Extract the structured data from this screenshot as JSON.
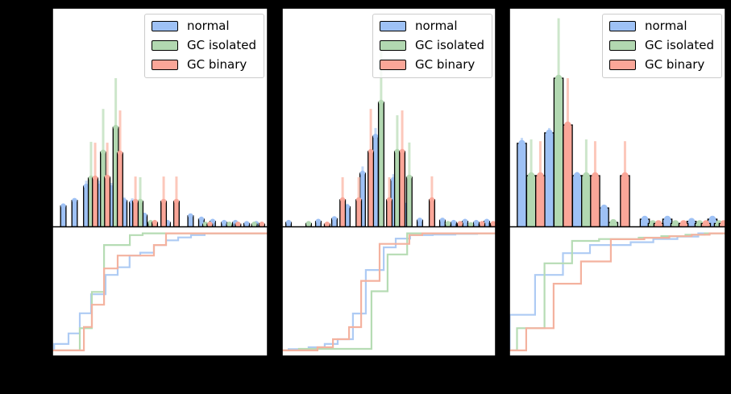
{
  "figure": {
    "background_color": "#000000",
    "axes_background": "#ffffff",
    "spine_color": "#000000",
    "note": "three-panel figure; each panel: top = histogram with error bars, bottom = cumulative step distribution; no visible axis tick labels or titles (rendered black on black)"
  },
  "legend": {
    "position": "upper right of each top subplot",
    "items": [
      {
        "label": "normal",
        "color": "#9ec1f5"
      },
      {
        "label": "GC isolated",
        "color": "#b2d8b1"
      },
      {
        "label": "GC binary",
        "color": "#faa698"
      }
    ]
  },
  "chart_data": {
    "type": "bar",
    "subtype": "histogram-with-errorbars-plus-cumulative-step",
    "title": "",
    "xlabel": "",
    "ylabel": "",
    "grid": false,
    "axis_tick_labels_visible": false,
    "series": [
      {
        "name": "normal",
        "fill": "#9ec1f5",
        "err": "#c3d9f8",
        "step": "#aecbf4"
      },
      {
        "name": "GC isolated",
        "fill": "#b2d8b1",
        "err": "#cde6cb",
        "step": "#b6dcb4"
      },
      {
        "name": "GC binary",
        "fill": "#faa698",
        "err": "#fcc8bb",
        "step": "#f4b29f"
      }
    ],
    "units": "x = fraction of panel width; h/e/v = fraction of subplot height (0-1)",
    "panels": [
      {
        "name": "left",
        "bar_width_frac": 0.025,
        "marker_radius": 3.2,
        "bars": [
          [
            0,
            0.054,
            0.095,
            0
          ],
          [
            0,
            0.106,
            0.12,
            0
          ],
          [
            0,
            0.16,
            0.185,
            0.21
          ],
          [
            0,
            0.219,
            0.185,
            0.21
          ],
          [
            0,
            0.275,
            0.178,
            0.2
          ],
          [
            0,
            0.335,
            0.119,
            0.135
          ],
          [
            0,
            0.372,
            0.112,
            0.13
          ],
          [
            0,
            0.428,
            0.053,
            0
          ],
          [
            0,
            0.535,
            0.02,
            0
          ],
          [
            0,
            0.641,
            0.05,
            0
          ],
          [
            0,
            0.691,
            0.035,
            0
          ],
          [
            0,
            0.743,
            0.025,
            0
          ],
          [
            0,
            0.796,
            0.02,
            0
          ],
          [
            0,
            0.848,
            0.02,
            0
          ],
          [
            0,
            0.9,
            0.015,
            0
          ],
          [
            0,
            0.944,
            0.015,
            0
          ],
          [
            1,
            0.182,
            0.222,
            0.387
          ],
          [
            1,
            0.238,
            0.34,
            0.537
          ],
          [
            1,
            0.296,
            0.453,
            0.677
          ],
          [
            1,
            0.409,
            0.116,
            0.226
          ],
          [
            1,
            0.457,
            0.02,
            0
          ],
          [
            1,
            0.71,
            0.012,
            0
          ],
          [
            1,
            0.82,
            0.012,
            0
          ],
          [
            1,
            0.935,
            0.012,
            0
          ],
          [
            2,
            0.201,
            0.222,
            0.383
          ],
          [
            2,
            0.257,
            0.226,
            0.383
          ],
          [
            2,
            0.316,
            0.336,
            0.53
          ],
          [
            2,
            0.387,
            0.116,
            0.229
          ],
          [
            2,
            0.476,
            0.02,
            0
          ],
          [
            2,
            0.517,
            0.116,
            0.229
          ],
          [
            2,
            0.576,
            0.116,
            0.229
          ],
          [
            2,
            0.73,
            0.012,
            0
          ],
          [
            2,
            0.86,
            0.012,
            0
          ],
          [
            2,
            0.97,
            0.012,
            0
          ]
        ],
        "cdf": [
          [
            [
              0.012,
              0.055
            ],
            [
              0.078,
              0.145
            ],
            [
              0.13,
              0.317
            ],
            [
              0.182,
              0.48
            ],
            [
              0.249,
              0.645
            ],
            [
              0.305,
              0.71
            ],
            [
              0.36,
              0.81
            ],
            [
              0.409,
              0.835
            ],
            [
              0.472,
              0.9
            ],
            [
              0.528,
              0.94
            ],
            [
              0.584,
              0.965
            ],
            [
              0.643,
              0.985
            ],
            [
              0.706,
              1.0
            ]
          ],
          [
            [
              0.13,
              0.19
            ],
            [
              0.186,
              0.5
            ],
            [
              0.242,
              0.9
            ],
            [
              0.361,
              0.985
            ],
            [
              0.42,
              1.0
            ]
          ],
          [
            [
              0.149,
              0.2
            ],
            [
              0.186,
              0.39
            ],
            [
              0.242,
              0.7
            ],
            [
              0.305,
              0.81
            ],
            [
              0.472,
              0.9
            ],
            [
              0.528,
              1.0
            ]
          ]
        ]
      },
      {
        "name": "center",
        "bar_width_frac": 0.025,
        "marker_radius": 3.2,
        "bars": [
          [
            0,
            0.034,
            0.02,
            0
          ],
          [
            0,
            0.172,
            0.025,
            0
          ],
          [
            0,
            0.247,
            0.037,
            0
          ],
          [
            0,
            0.307,
            0.091,
            0.105
          ],
          [
            0,
            0.378,
            0.244,
            0.275
          ],
          [
            0,
            0.438,
            0.412,
            0.45
          ],
          [
            0,
            0.521,
            0.215,
            0.24
          ],
          [
            0,
            0.577,
            0.097,
            0.11
          ],
          [
            0,
            0.644,
            0.03,
            0
          ],
          [
            0,
            0.749,
            0.03,
            0
          ],
          [
            0,
            0.801,
            0.02,
            0
          ],
          [
            0,
            0.854,
            0.025,
            0
          ],
          [
            0,
            0.906,
            0.02,
            0
          ],
          [
            0,
            0.955,
            0.025,
            0
          ],
          [
            1,
            0.127,
            0.015,
            0
          ],
          [
            1,
            0.464,
            0.567,
            0.813
          ],
          [
            1,
            0.539,
            0.343,
            0.508
          ],
          [
            1,
            0.595,
            0.226,
            0.384
          ],
          [
            1,
            0.775,
            0.015,
            0
          ],
          [
            1,
            0.88,
            0.01,
            0
          ],
          [
            2,
            0.213,
            0.012,
            0
          ],
          [
            2,
            0.285,
            0.123,
            0.226
          ],
          [
            2,
            0.36,
            0.123,
            0.226
          ],
          [
            2,
            0.416,
            0.343,
            0.537
          ],
          [
            2,
            0.502,
            0.123,
            0.226
          ],
          [
            2,
            0.562,
            0.343,
            0.53
          ],
          [
            2,
            0.7,
            0.123,
            0.23
          ],
          [
            2,
            0.831,
            0.015,
            0
          ],
          [
            2,
            0.933,
            0.015,
            0
          ],
          [
            2,
            0.985,
            0.015,
            0
          ]
        ],
        "cdf": [
          [
            [
              0.034,
              0.01
            ],
            [
              0.127,
              0.027
            ],
            [
              0.202,
              0.055
            ],
            [
              0.262,
              0.096
            ],
            [
              0.333,
              0.315
            ],
            [
              0.393,
              0.687
            ],
            [
              0.476,
              0.88
            ],
            [
              0.532,
              0.955
            ],
            [
              0.599,
              0.985
            ],
            [
              0.704,
              0.99
            ],
            [
              0.809,
              0.995
            ],
            [
              0.91,
              1.0
            ]
          ],
          [
            [
              0.082,
              0.013
            ],
            [
              0.419,
              0.505
            ],
            [
              0.494,
              0.82
            ],
            [
              0.585,
              1.0
            ]
          ],
          [
            [
              0.168,
              0.027
            ],
            [
              0.24,
              0.096
            ],
            [
              0.315,
              0.199
            ],
            [
              0.371,
              0.594
            ],
            [
              0.457,
              0.91
            ],
            [
              0.595,
              0.985
            ],
            [
              0.655,
              1.0
            ]
          ]
        ]
      },
      {
        "name": "right",
        "bar_width_frac": 0.042,
        "marker_radius": 4.2,
        "bars": [
          [
            0,
            0.061,
            0.38,
            0.405
          ],
          [
            0,
            0.187,
            0.428,
            0.45
          ],
          [
            0,
            0.315,
            0.233,
            0.25
          ],
          [
            0,
            0.439,
            0.086,
            0.095
          ],
          [
            0,
            0.626,
            0.035,
            0
          ],
          [
            0,
            0.73,
            0.035,
            0
          ],
          [
            0,
            0.841,
            0.025,
            0
          ],
          [
            0,
            0.937,
            0.035,
            0
          ],
          [
            1,
            0.104,
            0.233,
            0.398
          ],
          [
            1,
            0.23,
            0.677,
            0.95
          ],
          [
            1,
            0.357,
            0.233,
            0.398
          ],
          [
            1,
            0.481,
            0.02,
            0
          ],
          [
            1,
            0.663,
            0.015,
            0
          ],
          [
            1,
            0.767,
            0.015,
            0
          ],
          [
            1,
            0.878,
            0.015,
            0
          ],
          [
            1,
            0.967,
            0.015,
            0
          ],
          [
            2,
            0.146,
            0.233,
            0.39
          ],
          [
            2,
            0.272,
            0.464,
            0.677
          ],
          [
            2,
            0.398,
            0.233,
            0.39
          ],
          [
            2,
            0.535,
            0.233,
            0.39
          ],
          [
            2,
            0.689,
            0.015,
            0
          ],
          [
            2,
            0.804,
            0.015,
            0
          ],
          [
            2,
            0.907,
            0.015,
            0
          ],
          [
            2,
            0.989,
            0.015,
            0
          ]
        ],
        "cdf": [
          [
            [
              0.005,
              0.304
            ],
            [
              0.122,
              0.645
            ],
            [
              0.25,
              0.831
            ],
            [
              0.374,
              0.9
            ],
            [
              0.561,
              0.924
            ],
            [
              0.665,
              0.952
            ],
            [
              0.776,
              0.972
            ],
            [
              0.872,
              1.0
            ]
          ],
          [
            [
              0.039,
              0.19
            ],
            [
              0.165,
              0.744
            ],
            [
              0.292,
              0.935
            ],
            [
              0.416,
              0.951
            ],
            [
              0.598,
              0.963
            ],
            [
              0.702,
              0.976
            ],
            [
              0.813,
              0.988
            ],
            [
              0.902,
              1.0
            ]
          ],
          [
            [
              0.081,
              0.19
            ],
            [
              0.207,
              0.57
            ],
            [
              0.333,
              0.76
            ],
            [
              0.47,
              0.95
            ],
            [
              0.624,
              0.962
            ],
            [
              0.739,
              0.975
            ],
            [
              0.842,
              0.988
            ],
            [
              0.924,
              1.0
            ]
          ]
        ]
      }
    ]
  }
}
